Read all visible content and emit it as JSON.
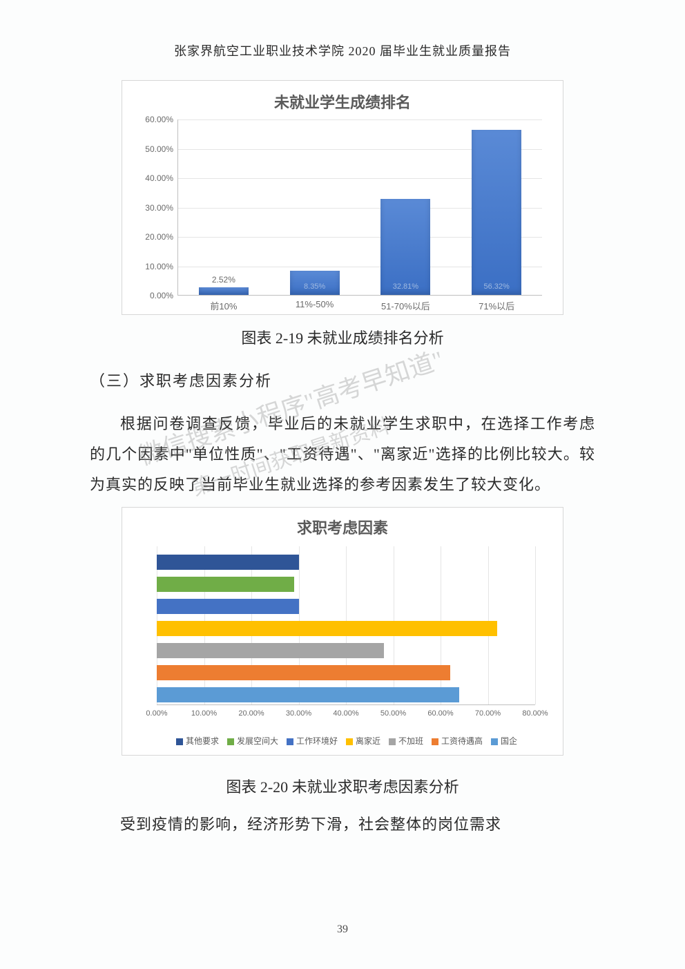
{
  "header": "张家界航空工业职业技术学院 2020 届毕业生就业质量报告",
  "chart1": {
    "type": "bar",
    "title": "未就业学生成绩排名",
    "ymax": 60,
    "ytick_step": 10,
    "ylabel_suffix": ".00%",
    "categories": [
      "前10%",
      "11%-50%",
      "51-70%以后",
      "71%以后"
    ],
    "values": [
      2.52,
      8.35,
      32.81,
      56.32
    ],
    "value_labels": [
      "2.52%",
      "8.35%",
      "32.81%",
      "56.32%"
    ],
    "bar_color_top": "#5a8ad6",
    "bar_color_bot": "#3b6fc4",
    "grid_color": "#e5e5e5",
    "axis_color": "#bfbfbf",
    "label_color": "#6a6a6a",
    "title_color": "#5a5a5a",
    "background": "#ffffff",
    "title_fontsize": 22,
    "tick_fontsize": 12
  },
  "caption1": "图表 2-19 未就业成绩排名分析",
  "section_head": "（三）求职考虑因素分析",
  "para1": "根据问卷调查反馈，毕业后的未就业学生求职中，在选择工作考虑的几个因素中\"单位性质\"、\"工资待遇\"、\"离家近\"选择的比例比较大。较为真实的反映了当前毕业生就业选择的参考因素发生了较大变化。",
  "chart2": {
    "type": "hbar",
    "title": "求职考虑因素",
    "xmax": 80,
    "xtick_step": 10,
    "xlabel_suffix": ".00%",
    "series": [
      {
        "label": "其他要求",
        "value": 30,
        "color": "#2f5597"
      },
      {
        "label": "发展空间大",
        "value": 29,
        "color": "#70ad47"
      },
      {
        "label": "工作环境好",
        "value": 30,
        "color": "#4472c4"
      },
      {
        "label": "离家近",
        "value": 72,
        "color": "#ffc000"
      },
      {
        "label": "不加班",
        "value": 48,
        "color": "#a5a5a5"
      },
      {
        "label": "工资待遇高",
        "value": 62,
        "color": "#ed7d31"
      },
      {
        "label": "国企",
        "value": 64,
        "color": "#5b9bd5"
      }
    ],
    "grid_color": "#e5e5e5",
    "axis_color": "#bfbfbf",
    "label_color": "#6a6a6a",
    "title_color": "#5a5a5a",
    "background": "#ffffff",
    "title_fontsize": 22,
    "tick_fontsize": 11,
    "legend_fontsize": 12
  },
  "caption2": "图表 2-20 未就业求职考虑因素分析",
  "para2": "受到疫情的影响，经济形势下滑，社会整体的岗位需求",
  "page_number": "39",
  "watermark": {
    "line1": "微信搜索小程序\"高考早知道\"",
    "line2": "第一时间获取最新资料",
    "color": "rgba(140,140,140,0.35)",
    "angle": -18,
    "fontsize_main": 36,
    "fontsize_sub": 30
  }
}
